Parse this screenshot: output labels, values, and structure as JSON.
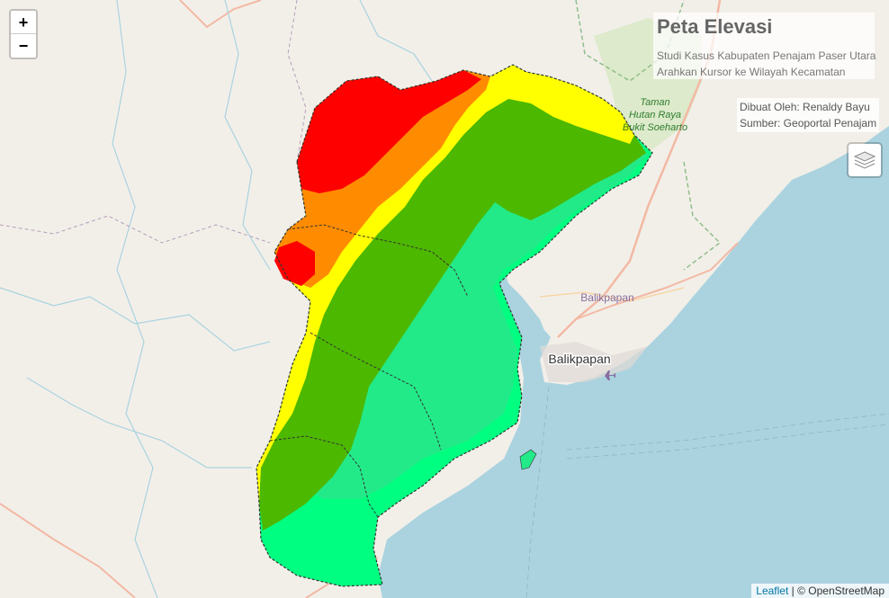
{
  "zoom": {
    "in_label": "+",
    "out_label": "−"
  },
  "title_panel": {
    "title": "Peta Elevasi",
    "subtitle": "Studi Kasus Kabupaten Penajam Paser Utara",
    "instruction": "Arahkan Kursor ke Wilayah Kecamatan"
  },
  "credit_panel": {
    "author": "Dibuat Oleh: Renaldy Bayu",
    "source": "Sumber: Geoportal Penajam"
  },
  "map_labels": {
    "park_line1": "Taman",
    "park_line2": "Hutan Raya",
    "park_line3": "Bukit Soeharto",
    "city_small": "Balikpapan",
    "city_main": "Balikpapan"
  },
  "attribution": {
    "leaflet": "Leaflet",
    "separator": " | © ",
    "osm": "OpenStreetMap"
  },
  "colors": {
    "land": "#f2efe9",
    "sea": "#aad3df",
    "elev_very_high": "#ff0000",
    "elev_high": "#ff8c00",
    "elev_mid_high": "#ffff00",
    "elev_mid": "#4cb800",
    "elev_low": "#22ea88",
    "elev_lowest": "#00ff80"
  }
}
